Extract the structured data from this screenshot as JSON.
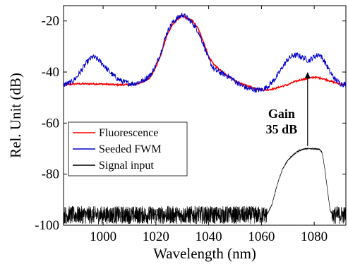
{
  "chart_data": {
    "type": "line",
    "xlabel": "Wavelength (nm)",
    "ylabel": "Rel. Unit (dB)",
    "xlim": [
      985,
      1092
    ],
    "ylim": [
      -100,
      -14
    ],
    "xticks": [
      1000,
      1020,
      1040,
      1060,
      1080
    ],
    "yticks": [
      -100,
      -80,
      -60,
      -40,
      -20
    ],
    "grid": false,
    "legend_position": "lower-left",
    "series": [
      {
        "name": "Fluorescence",
        "color": "#ff0000",
        "x": [
          985,
          990,
          995,
          1000,
          1005,
          1010,
          1012,
          1015,
          1018,
          1020,
          1022,
          1024,
          1026,
          1028,
          1030,
          1032,
          1034,
          1036,
          1038,
          1040,
          1042,
          1044,
          1046,
          1048,
          1050,
          1052,
          1055,
          1058,
          1060,
          1062,
          1065,
          1068,
          1070,
          1072,
          1075,
          1078,
          1080,
          1083,
          1086,
          1089,
          1092
        ],
        "y": [
          -45,
          -44.6,
          -44.6,
          -44.7,
          -45,
          -45,
          -44.8,
          -44,
          -42,
          -38,
          -33,
          -26,
          -22,
          -19.5,
          -18,
          -19,
          -20,
          -23,
          -28,
          -34,
          -37,
          -39,
          -40.5,
          -42,
          -43.5,
          -44.5,
          -45.5,
          -46.5,
          -47,
          -47,
          -46.5,
          -45.5,
          -45,
          -44,
          -43,
          -42.5,
          -42,
          -42.5,
          -43.5,
          -44.5,
          -45
        ]
      },
      {
        "name": "Seeded FWM",
        "color": "#0000cc",
        "x": [
          985,
          988,
          990,
          992,
          994,
          996,
          998,
          1000,
          1002,
          1004,
          1006,
          1008,
          1010,
          1012,
          1015,
          1018,
          1020,
          1022,
          1024,
          1026,
          1028,
          1030,
          1032,
          1034,
          1036,
          1038,
          1040,
          1042,
          1044,
          1046,
          1048,
          1050,
          1052,
          1055,
          1058,
          1060,
          1062,
          1064,
          1066,
          1068,
          1070,
          1072,
          1074,
          1076,
          1078,
          1080,
          1082,
          1084,
          1086,
          1088,
          1090,
          1092
        ],
        "y": [
          -45,
          -44,
          -42,
          -39,
          -36,
          -34,
          -35,
          -37,
          -39.5,
          -41.5,
          -43,
          -44,
          -44.5,
          -44.5,
          -43.5,
          -41,
          -37.5,
          -32,
          -25,
          -21,
          -19,
          -17.5,
          -19,
          -21,
          -24,
          -29,
          -35,
          -39,
          -40,
          -41,
          -42,
          -43.5,
          -45,
          -46.5,
          -47,
          -47,
          -46,
          -44,
          -41.5,
          -38,
          -35,
          -33.5,
          -33.5,
          -34.5,
          -35.5,
          -34,
          -33,
          -36,
          -40,
          -43,
          -44.5,
          -45
        ]
      },
      {
        "name": "Signal input",
        "color": "#000000",
        "x": [
          985,
          1000,
          1020,
          1040,
          1055,
          1062,
          1064,
          1066,
          1068,
          1070,
          1072,
          1074,
          1076,
          1078,
          1080,
          1082,
          1083,
          1084,
          1085,
          1086,
          1087,
          1092
        ],
        "y": [
          -96,
          -96,
          -96,
          -96,
          -96,
          -96,
          -92,
          -84,
          -78,
          -74.5,
          -72.5,
          -71,
          -70.2,
          -70,
          -70,
          -70.2,
          -71.5,
          -78,
          -86,
          -94,
          -96,
          -96
        ]
      }
    ],
    "annotations": [
      {
        "text": "Gain",
        "x": 1077,
        "y": -58
      },
      {
        "text": "35 dB",
        "x": 1077,
        "y": -64
      }
    ],
    "arrow": {
      "x": 1077.5,
      "y_from": -69,
      "y_to": -40
    }
  }
}
